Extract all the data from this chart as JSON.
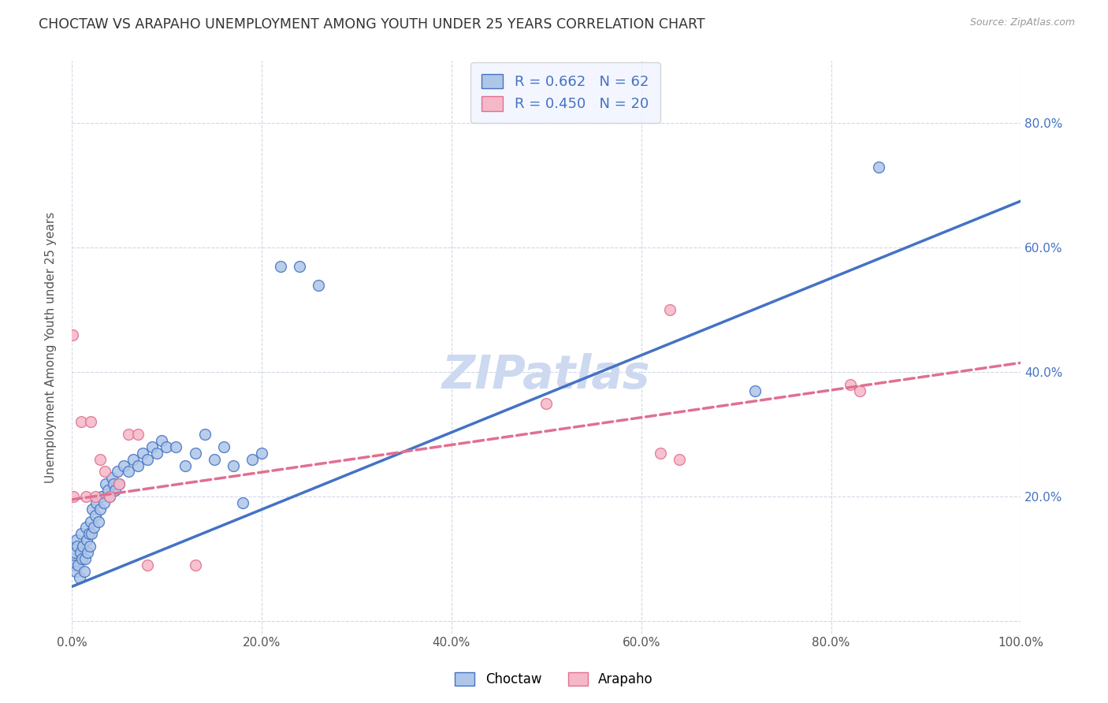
{
  "title": "CHOCTAW VS ARAPAHO UNEMPLOYMENT AMONG YOUTH UNDER 25 YEARS CORRELATION CHART",
  "source": "Source: ZipAtlas.com",
  "ylabel": "Unemployment Among Youth under 25 years",
  "watermark": "ZIPatlas",
  "choctaw_R": "0.662",
  "choctaw_N": "62",
  "arapaho_R": "0.450",
  "arapaho_N": "20",
  "choctaw_color": "#aec6e8",
  "arapaho_color": "#f5b8c8",
  "choctaw_line_color": "#4472c4",
  "arapaho_line_color": "#e07090",
  "choctaw_x": [
    0.001,
    0.002,
    0.003,
    0.004,
    0.005,
    0.006,
    0.007,
    0.008,
    0.009,
    0.01,
    0.011,
    0.012,
    0.013,
    0.014,
    0.015,
    0.016,
    0.017,
    0.018,
    0.019,
    0.02,
    0.021,
    0.022,
    0.023,
    0.025,
    0.026,
    0.028,
    0.03,
    0.032,
    0.034,
    0.036,
    0.038,
    0.04,
    0.042,
    0.044,
    0.046,
    0.048,
    0.05,
    0.055,
    0.06,
    0.065,
    0.07,
    0.075,
    0.08,
    0.085,
    0.09,
    0.095,
    0.1,
    0.11,
    0.12,
    0.13,
    0.14,
    0.15,
    0.16,
    0.17,
    0.18,
    0.19,
    0.2,
    0.22,
    0.24,
    0.26,
    0.72,
    0.85
  ],
  "choctaw_y": [
    0.1,
    0.09,
    0.11,
    0.08,
    0.13,
    0.12,
    0.09,
    0.07,
    0.11,
    0.14,
    0.1,
    0.12,
    0.08,
    0.1,
    0.15,
    0.13,
    0.11,
    0.14,
    0.12,
    0.16,
    0.14,
    0.18,
    0.15,
    0.17,
    0.19,
    0.16,
    0.18,
    0.2,
    0.19,
    0.22,
    0.21,
    0.2,
    0.23,
    0.22,
    0.21,
    0.24,
    0.22,
    0.25,
    0.24,
    0.26,
    0.25,
    0.27,
    0.26,
    0.28,
    0.27,
    0.29,
    0.28,
    0.28,
    0.25,
    0.27,
    0.3,
    0.26,
    0.28,
    0.25,
    0.19,
    0.26,
    0.27,
    0.57,
    0.57,
    0.54,
    0.37,
    0.73
  ],
  "arapaho_x": [
    0.001,
    0.002,
    0.01,
    0.015,
    0.02,
    0.025,
    0.03,
    0.035,
    0.04,
    0.05,
    0.06,
    0.07,
    0.08,
    0.13,
    0.5,
    0.62,
    0.63,
    0.64,
    0.82,
    0.83
  ],
  "arapaho_y": [
    0.46,
    0.2,
    0.32,
    0.2,
    0.32,
    0.2,
    0.26,
    0.24,
    0.2,
    0.22,
    0.3,
    0.3,
    0.09,
    0.09,
    0.35,
    0.27,
    0.5,
    0.26,
    0.38,
    0.37
  ],
  "choctaw_line_x": [
    0.0,
    1.0
  ],
  "choctaw_line_y_start": 0.055,
  "choctaw_line_y_end": 0.675,
  "arapaho_line_x": [
    0.0,
    1.0
  ],
  "arapaho_line_y_start": 0.195,
  "arapaho_line_y_end": 0.415,
  "xlim": [
    0.0,
    1.0
  ],
  "ylim": [
    -0.02,
    0.9
  ],
  "xticks": [
    0.0,
    0.2,
    0.4,
    0.6,
    0.8,
    1.0
  ],
  "yticks": [
    0.0,
    0.2,
    0.4,
    0.6,
    0.8
  ],
  "xticklabels": [
    "0.0%",
    "20.0%",
    "40.0%",
    "60.0%",
    "80.0%",
    "100.0%"
  ],
  "left_yticklabels": [
    "",
    "",
    "",
    "",
    ""
  ],
  "right_yticklabels": [
    "20.0%",
    "40.0%",
    "60.0%",
    "80.0%"
  ],
  "right_yticks": [
    0.2,
    0.4,
    0.6,
    0.8
  ],
  "background_color": "#ffffff",
  "grid_color": "#d0d8e8",
  "title_fontsize": 12.5,
  "axis_label_fontsize": 11,
  "tick_fontsize": 11,
  "watermark_fontsize": 42,
  "watermark_color": "#ccd9f0",
  "legend_box_color": "#f0f4ff"
}
